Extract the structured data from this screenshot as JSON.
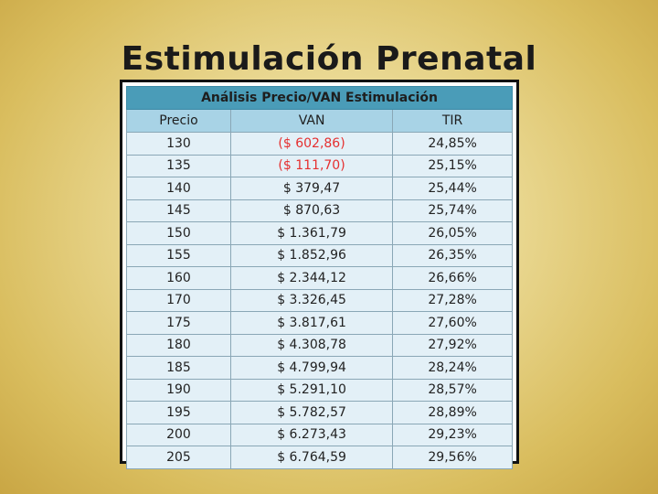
{
  "title": "Estimulación Prenatal",
  "table": {
    "caption": "Análisis Precio/VAN Estimulación",
    "headers": [
      "Precio",
      "VAN",
      "TIR"
    ],
    "negative_color": "#e53030",
    "rows": [
      {
        "precio": "130",
        "van": "($ 602,86)",
        "tir": "24,85%",
        "negative": true
      },
      {
        "precio": "135",
        "van": "($ 111,70)",
        "tir": "25,15%",
        "negative": true
      },
      {
        "precio": "140",
        "van": "$ 379,47",
        "tir": "25,44%",
        "negative": false
      },
      {
        "precio": "145",
        "van": "$ 870,63",
        "tir": "25,74%",
        "negative": false
      },
      {
        "precio": "150",
        "van": "$ 1.361,79",
        "tir": "26,05%",
        "negative": false
      },
      {
        "precio": "155",
        "van": "$ 1.852,96",
        "tir": "26,35%",
        "negative": false
      },
      {
        "precio": "160",
        "van": "$ 2.344,12",
        "tir": "26,66%",
        "negative": false
      },
      {
        "precio": "170",
        "van": "$ 3.326,45",
        "tir": "27,28%",
        "negative": false
      },
      {
        "precio": "175",
        "van": "$ 3.817,61",
        "tir": "27,60%",
        "negative": false
      },
      {
        "precio": "180",
        "van": "$ 4.308,78",
        "tir": "27,92%",
        "negative": false
      },
      {
        "precio": "185",
        "van": "$ 4.799,94",
        "tir": "28,24%",
        "negative": false
      },
      {
        "precio": "190",
        "van": "$ 5.291,10",
        "tir": "28,57%",
        "negative": false
      },
      {
        "precio": "195",
        "van": "$ 5.782,57",
        "tir": "28,89%",
        "negative": false
      },
      {
        "precio": "200",
        "van": "$ 6.273,43",
        "tir": "29,23%",
        "negative": false
      },
      {
        "precio": "205",
        "van": "$ 6.764,59",
        "tir": "29,56%",
        "negative": false
      }
    ]
  }
}
